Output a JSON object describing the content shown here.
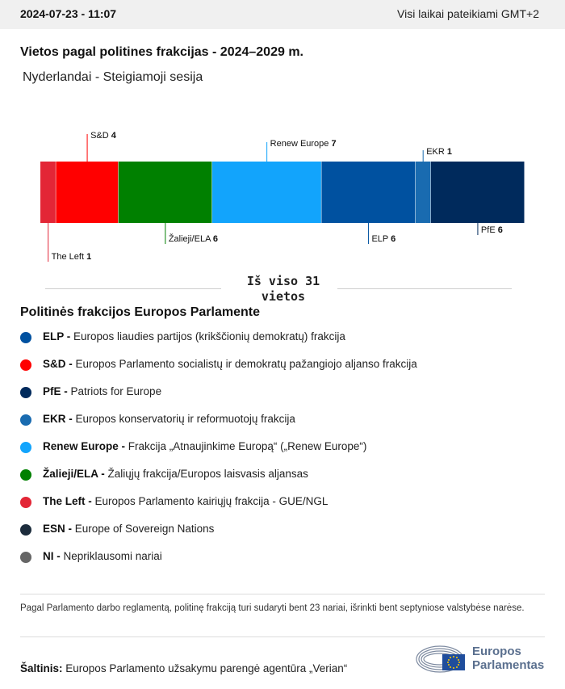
{
  "header": {
    "datetime": "2024-07-23 - 11:07",
    "timezone_note": "Visi laikai pateikiami GMT+2"
  },
  "title": "Vietos pagal politines frakcijas - 2024–2029 m.",
  "subtitle": "Nyderlandai - Steigiamoji sesija",
  "total_label": "Iš viso 31 vietos",
  "chart_data": {
    "type": "bar",
    "stacked": true,
    "orientation": "horizontal",
    "categories": [
      "The Left",
      "S&D",
      "Žalieji/ELA",
      "Renew Europe",
      "ELP",
      "EKR",
      "PfE"
    ],
    "values": [
      1,
      4,
      6,
      7,
      6,
      1,
      6
    ],
    "colors": [
      "#e32636",
      "#ff0000",
      "#008000",
      "#12a4fc",
      "#0051a0",
      "#196bb0",
      "#002a5c"
    ],
    "label_positions": [
      "below",
      "above",
      "below",
      "above",
      "below",
      "above",
      "below"
    ],
    "total": 31
  },
  "legend": {
    "title": "Politinės frakcijos Europos Parlamente",
    "items": [
      {
        "abbr": "ELP -",
        "name": "Europos liaudies partijos (krikščionių demokratų) frakcija",
        "color": "#0051a0"
      },
      {
        "abbr": "S&D -",
        "name": "Europos Parlamento socialistų ir demokratų pažangiojo aljanso frakcija",
        "color": "#ff0000"
      },
      {
        "abbr": "PfE -",
        "name": "Patriots for Europe",
        "color": "#002a5c"
      },
      {
        "abbr": "EKR -",
        "name": "Europos konservatorių ir reformuotojų frakcija",
        "color": "#196bb0"
      },
      {
        "abbr": "Renew Europe -",
        "name": "Frakcija „Atnaujinkime Europą“ („Renew Europe“)",
        "color": "#12a4fc"
      },
      {
        "abbr": "Žalieji/ELA -",
        "name": "Žaliųjų frakcija/Europos laisvasis aljansas",
        "color": "#008000"
      },
      {
        "abbr": "The Left -",
        "name": "Europos Parlamento kairiųjų frakcija - GUE/NGL",
        "color": "#e32636"
      },
      {
        "abbr": "ESN -",
        "name": "Europe of Sovereign Nations",
        "color": "#1c2c3c"
      },
      {
        "abbr": "NI -",
        "name": "Nepriklausomi nariai",
        "color": "#666666"
      }
    ]
  },
  "note": "Pagal Parlamento darbo reglamentą, politinę frakciją turi sudaryti bent 23 nariai, išrinkti bent septyniose valstybėse narėse.",
  "source": {
    "label": "Šaltinis:",
    "text": "Europos Parlamento užsakymu parengė agentūra „Verian“"
  },
  "logo": {
    "line1": "Europos",
    "line2": "Parlamentas"
  }
}
